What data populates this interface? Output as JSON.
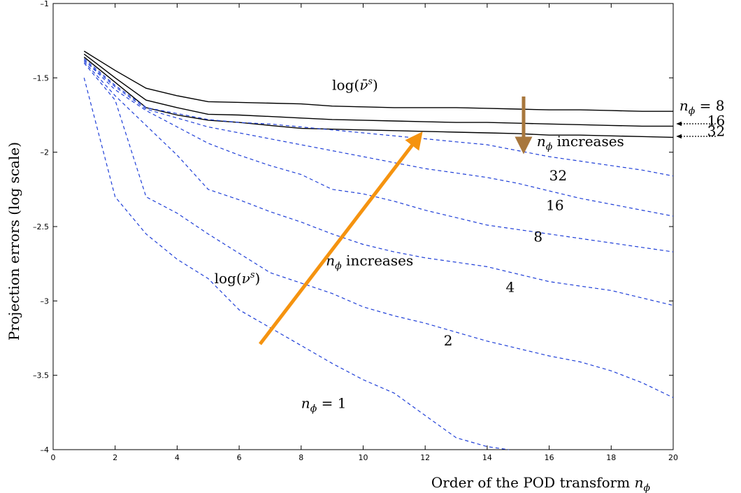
{
  "chart_data": {
    "type": "line",
    "xlabel": "Order of the POD transform n_ϕ",
    "ylabel": "Projection errors (log scale)",
    "xlim": [
      0,
      20
    ],
    "ylim": [
      -4,
      -1
    ],
    "xticks": [
      0,
      2,
      4,
      6,
      8,
      10,
      12,
      14,
      16,
      18,
      20
    ],
    "yticks": [
      -1,
      -1.5,
      -2,
      -2.5,
      -3,
      -3.5,
      -4
    ],
    "grid": false,
    "colors": {
      "solid": "#000000",
      "dashed": "#1f3fd8",
      "orange_arrow": "#f5930f",
      "brown_arrow": "#a8773c"
    },
    "series": [
      {
        "name": "8",
        "style": "solid",
        "x": [
          1,
          2,
          3,
          4,
          5,
          6,
          7,
          8,
          9,
          10,
          11,
          12,
          13,
          14,
          15,
          16,
          17,
          18,
          19,
          20
        ],
        "y": [
          -1.32,
          -1.45,
          -1.57,
          -1.62,
          -1.66,
          -1.665,
          -1.67,
          -1.675,
          -1.69,
          -1.695,
          -1.7,
          -1.7,
          -1.7,
          -1.705,
          -1.71,
          -1.715,
          -1.715,
          -1.72,
          -1.725,
          -1.725
        ]
      },
      {
        "name": "16",
        "style": "solid",
        "x": [
          1,
          2,
          3,
          4,
          5,
          6,
          7,
          8,
          9,
          10,
          11,
          12,
          13,
          14,
          15,
          16,
          17,
          18,
          19,
          20
        ],
        "y": [
          -1.34,
          -1.5,
          -1.65,
          -1.7,
          -1.745,
          -1.75,
          -1.76,
          -1.77,
          -1.78,
          -1.785,
          -1.79,
          -1.795,
          -1.8,
          -1.8,
          -1.805,
          -1.81,
          -1.815,
          -1.82,
          -1.825,
          -1.825
        ]
      },
      {
        "name": "32",
        "style": "solid",
        "x": [
          1,
          2,
          3,
          4,
          5,
          6,
          7,
          8,
          9,
          10,
          11,
          12,
          13,
          14,
          15,
          16,
          17,
          18,
          19,
          20
        ],
        "y": [
          -1.36,
          -1.53,
          -1.7,
          -1.75,
          -1.785,
          -1.8,
          -1.82,
          -1.84,
          -1.845,
          -1.85,
          -1.855,
          -1.86,
          -1.865,
          -1.87,
          -1.875,
          -1.885,
          -1.885,
          -1.89,
          -1.895,
          -1.9
        ]
      },
      {
        "name": "32",
        "style": "dashed",
        "x": [
          1,
          2,
          3,
          4,
          5,
          6,
          7,
          8,
          9,
          10,
          11,
          12,
          13,
          14,
          15,
          16,
          17,
          18,
          19,
          20
        ],
        "y": [
          -1.37,
          -1.55,
          -1.7,
          -1.74,
          -1.78,
          -1.8,
          -1.81,
          -1.83,
          -1.85,
          -1.87,
          -1.89,
          -1.91,
          -1.93,
          -1.95,
          -1.99,
          -2.03,
          -2.06,
          -2.09,
          -2.12,
          -2.16
        ]
      },
      {
        "name": "16",
        "style": "dashed",
        "x": [
          1,
          2,
          3,
          4,
          5,
          6,
          7,
          8,
          9,
          10,
          11,
          12,
          13,
          14,
          15,
          16,
          17,
          18,
          19,
          20
        ],
        "y": [
          -1.38,
          -1.56,
          -1.71,
          -1.77,
          -1.83,
          -1.87,
          -1.91,
          -1.95,
          -1.99,
          -2.03,
          -2.07,
          -2.11,
          -2.14,
          -2.17,
          -2.21,
          -2.26,
          -2.31,
          -2.35,
          -2.39,
          -2.43
        ]
      },
      {
        "name": "8",
        "style": "dashed",
        "x": [
          1,
          2,
          3,
          4,
          5,
          6,
          7,
          8,
          9,
          10,
          11,
          12,
          13,
          14,
          15,
          16,
          17,
          18,
          19,
          20
        ],
        "y": [
          -1.38,
          -1.58,
          -1.72,
          -1.83,
          -1.94,
          -2.02,
          -2.09,
          -2.15,
          -2.25,
          -2.28,
          -2.33,
          -2.39,
          -2.44,
          -2.49,
          -2.52,
          -2.55,
          -2.58,
          -2.61,
          -2.64,
          -2.67
        ]
      },
      {
        "name": "4",
        "style": "dashed",
        "x": [
          1,
          2,
          3,
          4,
          5,
          6,
          7,
          8,
          9,
          10,
          11,
          12,
          13,
          14,
          15,
          16,
          17,
          18,
          19,
          20
        ],
        "y": [
          -1.39,
          -1.62,
          -1.82,
          -2.02,
          -2.25,
          -2.32,
          -2.4,
          -2.47,
          -2.55,
          -2.62,
          -2.67,
          -2.71,
          -2.74,
          -2.77,
          -2.82,
          -2.87,
          -2.9,
          -2.93,
          -2.98,
          -3.03
        ]
      },
      {
        "name": "2",
        "style": "dashed",
        "x": [
          1,
          2,
          3,
          4,
          5,
          6,
          7,
          8,
          9,
          10,
          11,
          12,
          13,
          14,
          15,
          16,
          17,
          18,
          19,
          20
        ],
        "y": [
          -1.4,
          -1.65,
          -2.3,
          -2.41,
          -2.55,
          -2.68,
          -2.81,
          -2.88,
          -2.95,
          -3.04,
          -3.1,
          -3.15,
          -3.21,
          -3.27,
          -3.32,
          -3.37,
          -3.41,
          -3.47,
          -3.55,
          -3.65
        ]
      },
      {
        "name": "1",
        "style": "dashed",
        "x": [
          1,
          2,
          3,
          4,
          5,
          6,
          7,
          8,
          9,
          10,
          11,
          12,
          13,
          14,
          14.7
        ],
        "y": [
          -1.5,
          -2.3,
          -2.55,
          -2.72,
          -2.85,
          -3.06,
          -3.18,
          -3.3,
          -3.42,
          -3.53,
          -3.62,
          -3.77,
          -3.92,
          -3.98,
          -4.0
        ]
      }
    ],
    "annotations": [
      {
        "text": "log(ν̄ˢ)",
        "x": 9.0,
        "y": -1.58
      },
      {
        "text": "log(νˢ)",
        "x": 5.2,
        "y": -2.88
      },
      {
        "text": "n_ϕ increases",
        "x": 15.6,
        "y": -1.96
      },
      {
        "text": "n_ϕ increases",
        "x": 8.8,
        "y": -2.76
      },
      {
        "text": "n_ϕ = 1",
        "x": 8.0,
        "y": -3.72
      },
      {
        "text": "32",
        "x": 16.0,
        "y": -2.19
      },
      {
        "text": "16",
        "x": 15.9,
        "y": -2.39
      },
      {
        "text": "8",
        "x": 15.5,
        "y": -2.6
      },
      {
        "text": "4",
        "x": 14.6,
        "y": -2.94
      },
      {
        "text": "2",
        "x": 12.6,
        "y": -3.3
      },
      {
        "text": "n_ϕ = 8",
        "x": 20.2,
        "y": -1.72
      },
      {
        "text": "16",
        "x": 21.1,
        "y": -1.82
      },
      {
        "text": "32",
        "x": 21.1,
        "y": -1.89
      }
    ]
  }
}
